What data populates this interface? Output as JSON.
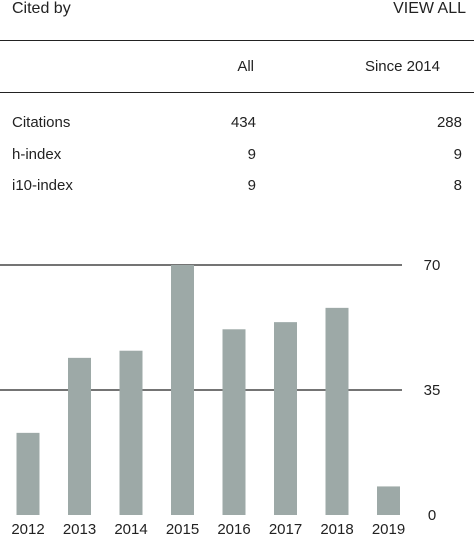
{
  "header": {
    "title": "Cited by",
    "view_all": "VIEW ALL"
  },
  "table": {
    "columns": [
      "All",
      "Since 2014"
    ],
    "rows": [
      {
        "label": "Citations",
        "all": "434",
        "since": "288"
      },
      {
        "label": "h-index",
        "all": "9",
        "since": "9"
      },
      {
        "label": "i10-index",
        "all": "9",
        "since": "8"
      }
    ]
  },
  "chart_data": {
    "type": "bar",
    "categories": [
      "2012",
      "2013",
      "2014",
      "2015",
      "2016",
      "2017",
      "2018",
      "2019"
    ],
    "values": [
      23,
      44,
      46,
      70,
      52,
      54,
      58,
      8
    ],
    "ylim": [
      0,
      70
    ],
    "yticks": [
      0,
      35,
      70
    ],
    "bar_color": "#9da9a7",
    "grid": true
  }
}
